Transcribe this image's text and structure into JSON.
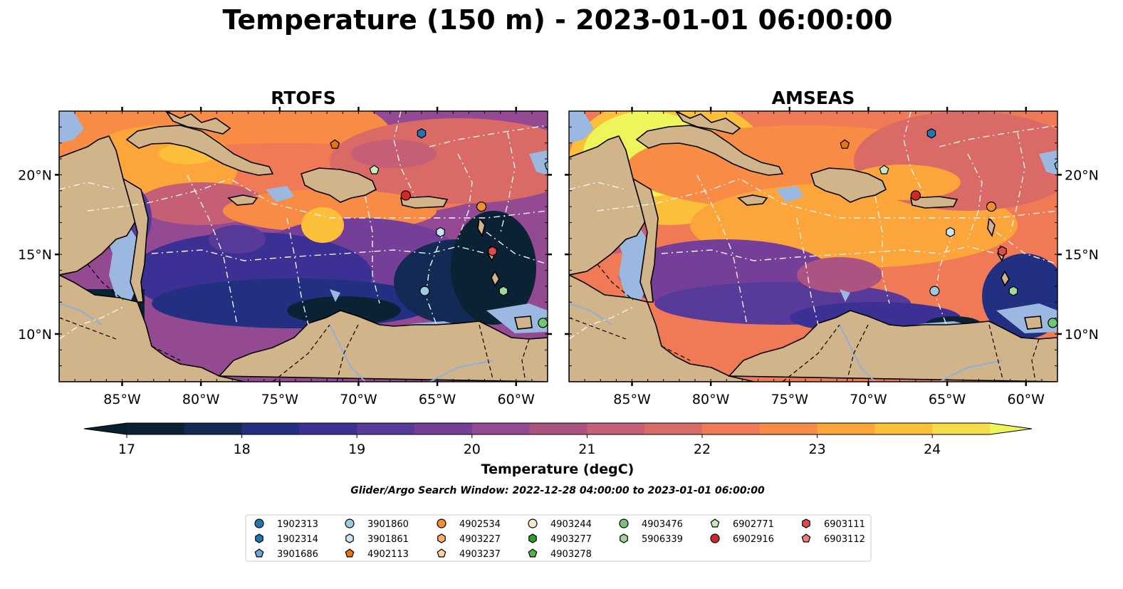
{
  "title": "Temperature (150 m) - 2023-01-01 06:00:00",
  "panels": [
    {
      "title": "RTOFS"
    },
    {
      "title": "AMSEAS"
    }
  ],
  "axes": {
    "xticks": [
      {
        "lon": -85,
        "label": "85°W"
      },
      {
        "lon": -80,
        "label": "80°W"
      },
      {
        "lon": -75,
        "label": "75°W"
      },
      {
        "lon": -70,
        "label": "70°W"
      },
      {
        "lon": -65,
        "label": "65°W"
      },
      {
        "lon": -60,
        "label": "60°W"
      }
    ],
    "yticks": [
      {
        "lat": 10,
        "label": "10°N"
      },
      {
        "lat": 15,
        "label": "15°N"
      },
      {
        "lat": 20,
        "label": "20°N"
      }
    ]
  },
  "colorbar": {
    "label": "Temperature (degC)",
    "ticks": [
      "17",
      "18",
      "19",
      "20",
      "21",
      "22",
      "23",
      "24"
    ],
    "colors": [
      "#0a2233",
      "#132a55",
      "#233082",
      "#3b3093",
      "#583a98",
      "#753e98",
      "#934a92",
      "#ad5381",
      "#c45f76",
      "#d96a66",
      "#ef7a55",
      "#f98c45",
      "#fca53b",
      "#fcbf3a",
      "#f5dc4b"
    ],
    "extend_low": "#08202e",
    "extend_high": "#eef55b"
  },
  "search_window": "Glider/Argo Search Window: 2022-12-28 04:00:00 to 2023-01-01 06:00:00",
  "legend": {
    "columns": [
      [
        {
          "id": "1902313",
          "marker": "circle",
          "color": "#1f77b4"
        },
        {
          "id": "1902314",
          "marker": "hexagon",
          "color": "#1f77b4"
        },
        {
          "id": "3901686",
          "marker": "pentagon",
          "color": "#6ea7d7"
        }
      ],
      [
        {
          "id": "3901860",
          "marker": "circle",
          "color": "#9ecae1"
        },
        {
          "id": "3901861",
          "marker": "hexagon",
          "color": "#c6e6f2"
        },
        {
          "id": "4902113",
          "marker": "pentagon",
          "color": "#e6740f"
        }
      ],
      [
        {
          "id": "4902534",
          "marker": "circle",
          "color": "#f28e2b"
        },
        {
          "id": "4903227",
          "marker": "hexagon",
          "color": "#fdae6b"
        },
        {
          "id": "4903237",
          "marker": "pentagon",
          "color": "#fdd0a2"
        }
      ],
      [
        {
          "id": "4903244",
          "marker": "circle",
          "color": "#fde4cc"
        },
        {
          "id": "4903277",
          "marker": "hexagon",
          "color": "#2ca02c"
        },
        {
          "id": "4903278",
          "marker": "pentagon",
          "color": "#55b34a"
        }
      ],
      [
        {
          "id": "4903476",
          "marker": "circle",
          "color": "#74c476"
        },
        {
          "id": "5906339",
          "marker": "hexagon",
          "color": "#a1d99b"
        }
      ],
      [
        {
          "id": "6902771",
          "marker": "pentagon",
          "color": "#c7e9c0"
        },
        {
          "id": "6902916",
          "marker": "circle",
          "color": "#d62728"
        }
      ],
      [
        {
          "id": "6903111",
          "marker": "hexagon",
          "color": "#e34a4a"
        },
        {
          "id": "6903112",
          "marker": "pentagon",
          "color": "#f07c7c"
        }
      ]
    ]
  },
  "chart_data": {
    "type": "heatmap",
    "variable": "Temperature",
    "units": "degC",
    "depth_m": 150,
    "time": "2023-01-01 06:00:00",
    "lon_range": [
      -89,
      -58
    ],
    "lat_range": [
      7,
      24
    ],
    "color_range": [
      17,
      24.5
    ],
    "panels": [
      {
        "name": "RTOFS",
        "floats": [
          {
            "id": "1902314",
            "lon": -66,
            "lat": 22.6
          },
          {
            "id": "4902113",
            "lon": -71.5,
            "lat": 21.9
          },
          {
            "id": "6902771",
            "lon": -69,
            "lat": 20.3
          },
          {
            "id": "6902916",
            "lon": -67,
            "lat": 18.7
          },
          {
            "id": "4902534",
            "lon": -62.2,
            "lat": 18.0
          },
          {
            "id": "3901861",
            "lon": -64.8,
            "lat": 16.4
          },
          {
            "id": "6903111",
            "lon": -61.5,
            "lat": 15.2
          },
          {
            "id": "3901860",
            "lon": -65.8,
            "lat": 12.7
          },
          {
            "id": "5906339",
            "lon": -60.8,
            "lat": 12.7
          },
          {
            "id": "4903476",
            "lon": -58.3,
            "lat": 10.7
          },
          {
            "id": "3901686",
            "lon": -57.9,
            "lat": 20.6
          }
        ]
      },
      {
        "name": "AMSEAS",
        "floats": [
          {
            "id": "1902314",
            "lon": -66,
            "lat": 22.6
          },
          {
            "id": "4902113",
            "lon": -71.5,
            "lat": 21.9
          },
          {
            "id": "6902771",
            "lon": -69,
            "lat": 20.3
          },
          {
            "id": "6902916",
            "lon": -67,
            "lat": 18.7
          },
          {
            "id": "4902534",
            "lon": -62.2,
            "lat": 18.0
          },
          {
            "id": "3901861",
            "lon": -64.8,
            "lat": 16.4
          },
          {
            "id": "6903111",
            "lon": -61.5,
            "lat": 15.2
          },
          {
            "id": "3901860",
            "lon": -65.8,
            "lat": 12.7
          },
          {
            "id": "5906339",
            "lon": -60.8,
            "lat": 12.7
          },
          {
            "id": "4903476",
            "lon": -58.3,
            "lat": 10.7
          },
          {
            "id": "3901686",
            "lon": -57.9,
            "lat": 20.6
          }
        ]
      }
    ]
  }
}
